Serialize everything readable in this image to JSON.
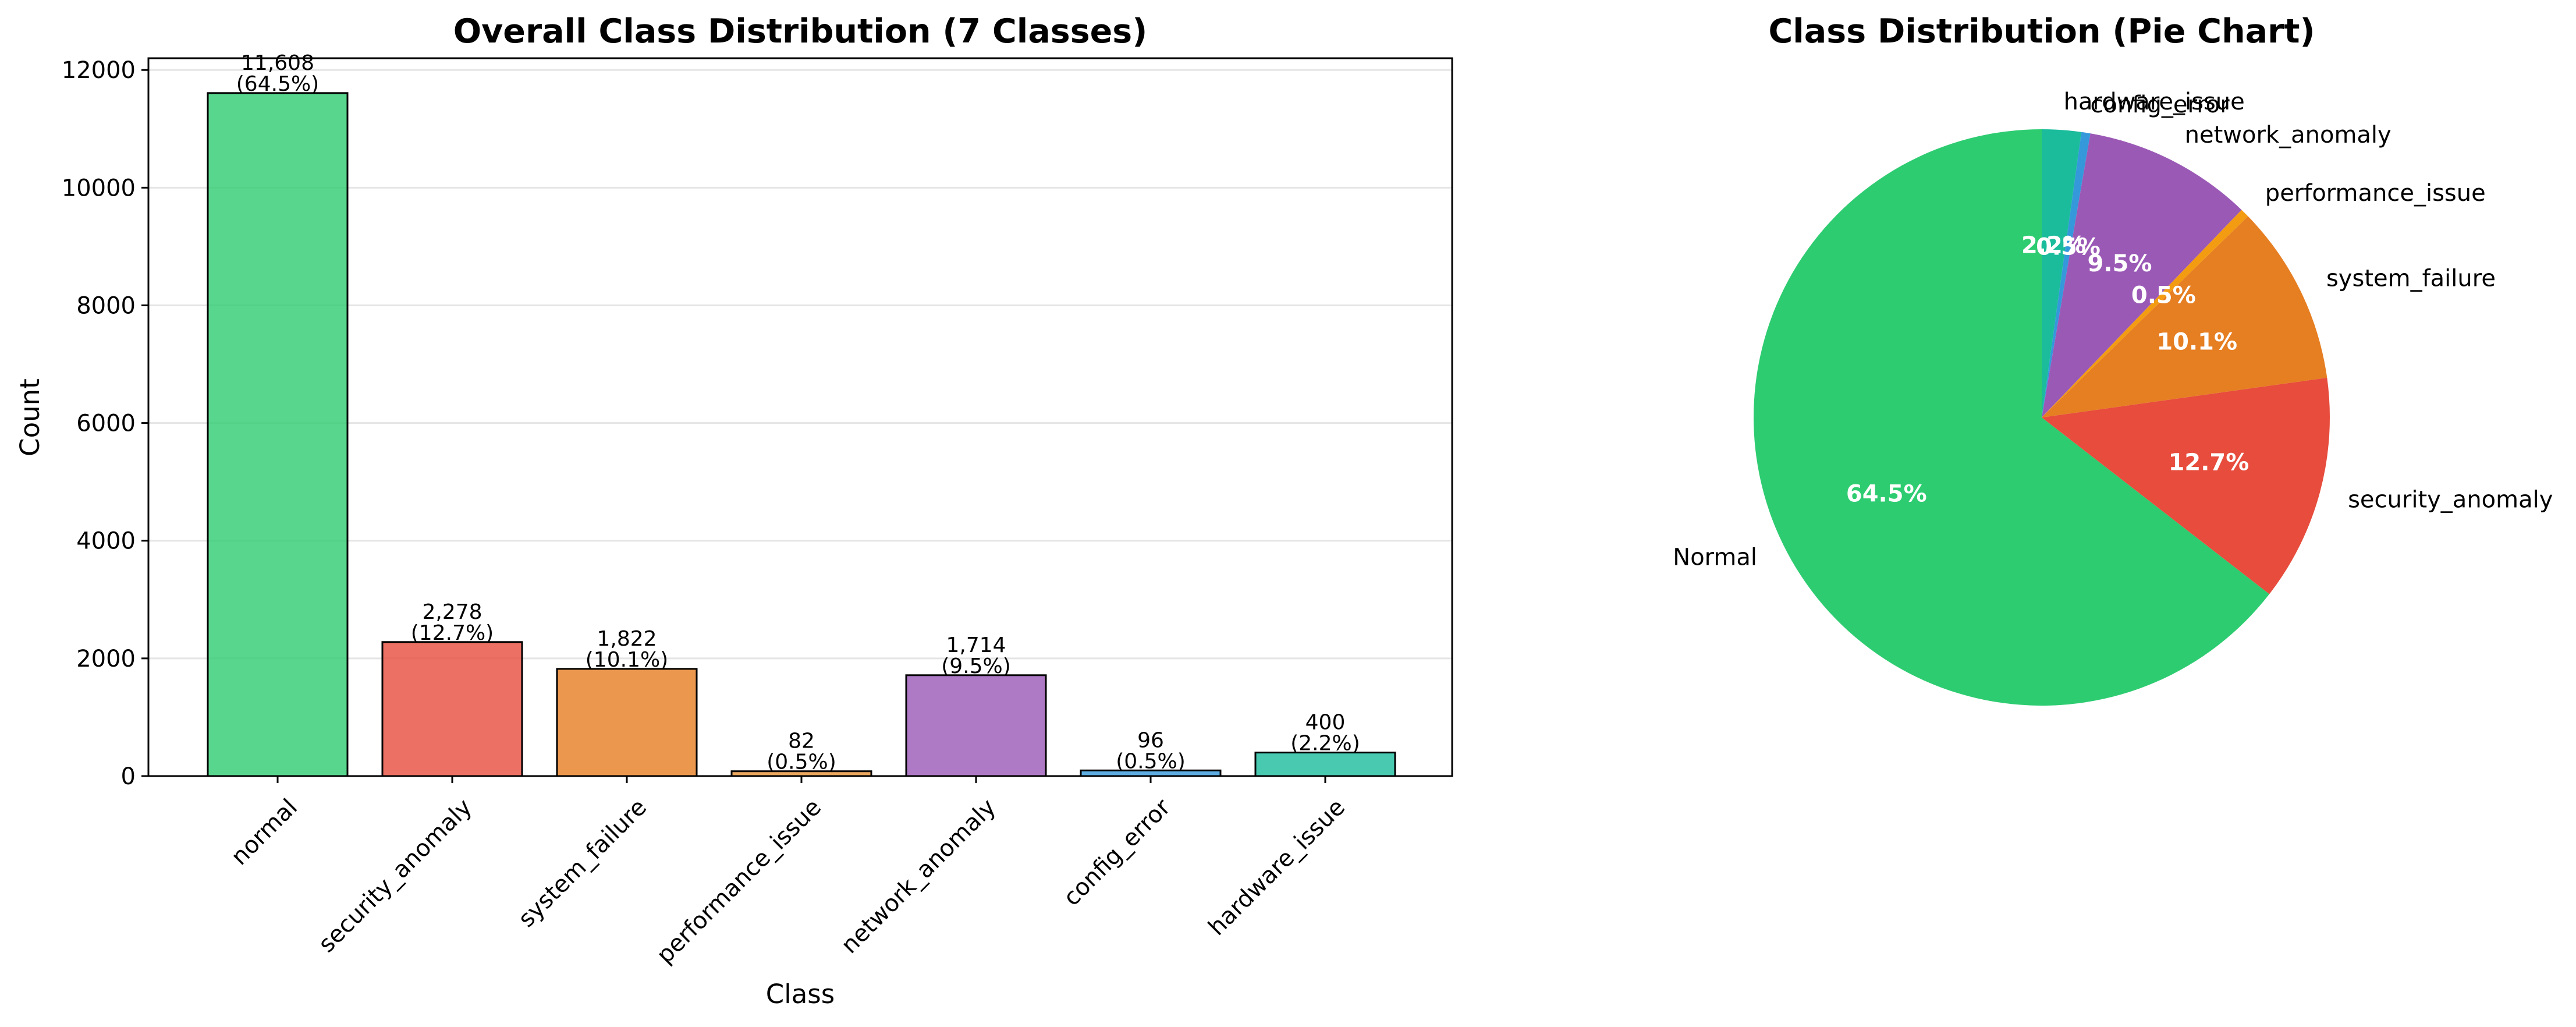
{
  "chart_data": [
    {
      "type": "bar",
      "title": "Overall Class Distribution (7 Classes)",
      "xlabel": "Class",
      "ylabel": "Count",
      "ylim": [
        0,
        12200
      ],
      "yticks": [
        0,
        2000,
        4000,
        6000,
        8000,
        10000,
        12000
      ],
      "ytick_labels": [
        "0",
        "2000",
        "4000",
        "6000",
        "8000",
        "10000",
        "12000"
      ],
      "grid": "y",
      "categories": [
        "normal",
        "security_anomaly",
        "system_failure",
        "performance_issue",
        "network_anomaly",
        "config_error",
        "hardware_issue"
      ],
      "values": [
        11608,
        2278,
        1822,
        82,
        1714,
        96,
        400
      ],
      "count_labels": [
        "11,608",
        "2,278",
        "1,822",
        "82",
        "1,714",
        "96",
        "400"
      ],
      "percent_labels": [
        "(64.5%)",
        "(12.7%)",
        "(10.1%)",
        "(0.5%)",
        "(9.5%)",
        "(0.5%)",
        "(2.2%)"
      ],
      "colors": [
        "#2ecc71",
        "#e74c3c",
        "#e67e22",
        "#e69138",
        "#9b59b6",
        "#3498db",
        "#1abc9c"
      ]
    },
    {
      "type": "pie",
      "title": "Class Distribution (Pie Chart)",
      "labels": [
        "Normal",
        "security_anomaly",
        "system_failure",
        "performance_issue",
        "network_anomaly",
        "config_error",
        "hardware_issue"
      ],
      "values": [
        64.5,
        12.7,
        10.1,
        0.5,
        9.5,
        0.5,
        2.2
      ],
      "percent_labels": [
        "64.5%",
        "12.7%",
        "10.1%",
        "0.5%",
        "9.5%",
        "0.5%",
        "2.2%"
      ],
      "colors": [
        "#2ecc71",
        "#e74c3c",
        "#e67e22",
        "#f39c12",
        "#9b59b6",
        "#3498db",
        "#1abc9c"
      ]
    }
  ]
}
